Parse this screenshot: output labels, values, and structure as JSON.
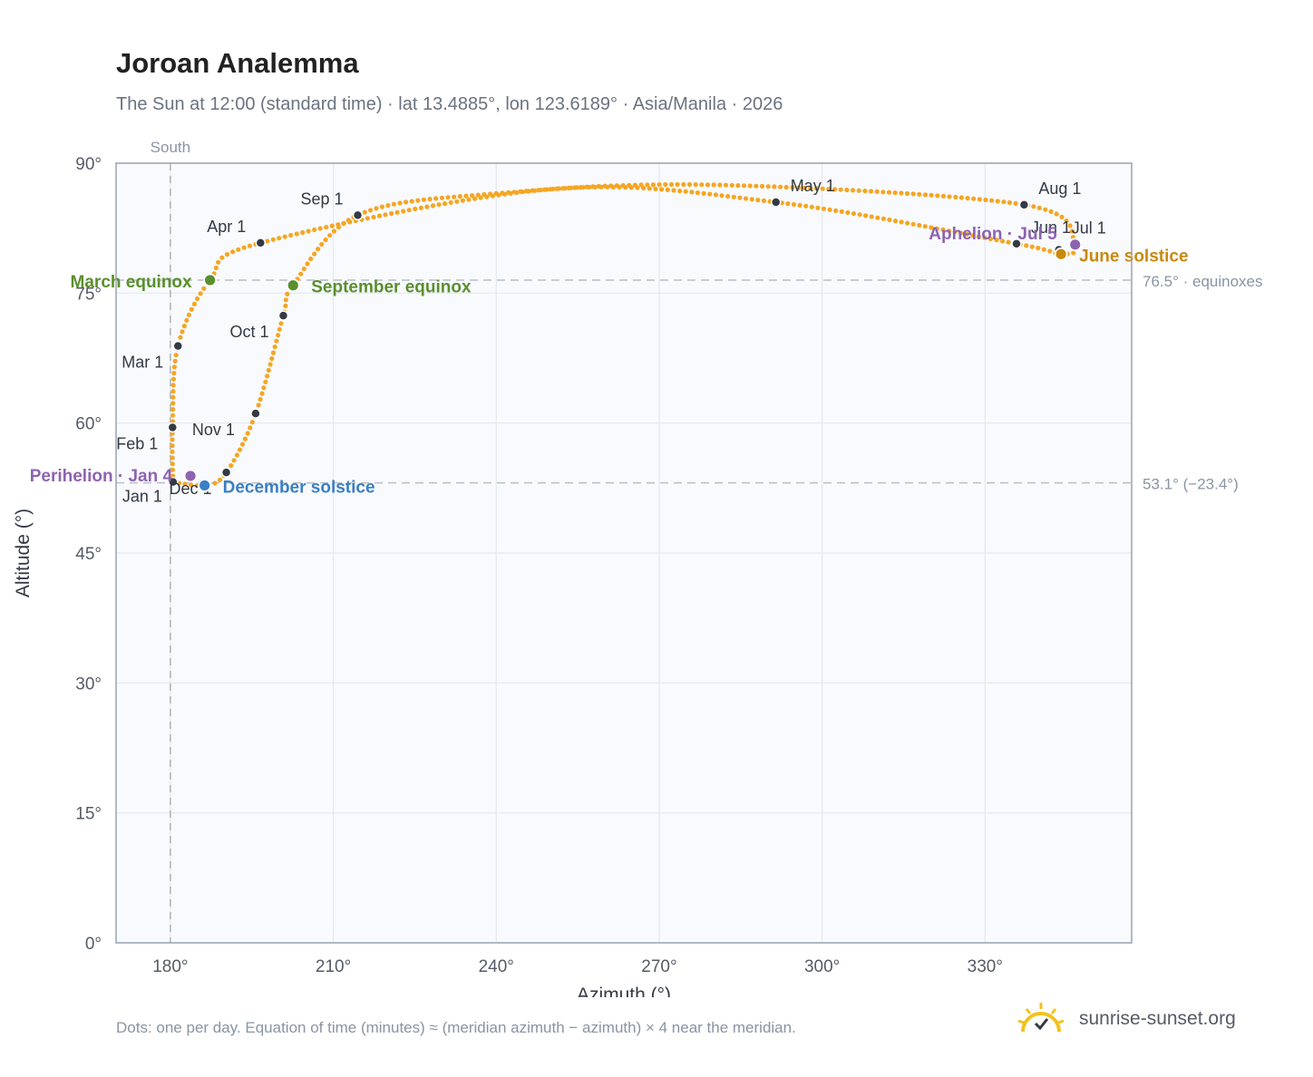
{
  "title": "Joroan Analemma",
  "subtitle": "The Sun at 12:00 (standard time) · lat 13.4885°, lon 123.6189° · Asia/Manila · 2026",
  "footnote": "Dots: one per day. Equation of time (minutes) ≈ (meridian azimuth − azimuth) × 4 near the meridian.",
  "brand": {
    "name": "sunrise-sunset.org",
    "icon": "sunrise-logo-icon"
  },
  "colors": {
    "curve": "#f5a623",
    "month_marker": "#333a44",
    "equinox": "#5a8f2e",
    "december_solstice": "#3b7fc4",
    "june_solstice": "#c9890e",
    "apsis": "#8e63b0",
    "plot_bg": "#f8fafd",
    "grid": "#e3e8ef",
    "axis": "#9aa4b2",
    "reference": "#b7bec8"
  },
  "chart_data": {
    "type": "scatter",
    "title": "Joroan Analemma",
    "xlabel": "Azimuth (°)",
    "ylabel": "Altitude (°)",
    "xlim": [
      170,
      357
    ],
    "ylim": [
      0,
      90
    ],
    "x_ticks": [
      {
        "value": 180,
        "label": "180°"
      },
      {
        "value": 210,
        "label": "210°"
      },
      {
        "value": 240,
        "label": "240°"
      },
      {
        "value": 270,
        "label": "270°"
      },
      {
        "value": 300,
        "label": "300°"
      },
      {
        "value": 330,
        "label": "330°"
      }
    ],
    "y_ticks": [
      {
        "value": 0,
        "label": "0°"
      },
      {
        "value": 15,
        "label": "15°"
      },
      {
        "value": 30,
        "label": "30°"
      },
      {
        "value": 45,
        "label": "45°"
      },
      {
        "value": 60,
        "label": "60°"
      },
      {
        "value": 75,
        "label": "75°"
      },
      {
        "value": 90,
        "label": "90°"
      }
    ],
    "grid": true,
    "meridian": {
      "azimuth": 180,
      "label": "South"
    },
    "reference_lines": [
      {
        "altitude": 76.5,
        "label": "76.5° · equinoxes"
      },
      {
        "altitude": 53.1,
        "label": "53.1° (−23.4°)"
      }
    ],
    "month_markers": [
      {
        "label": "Jan 1",
        "az": 180.5,
        "alt": 53.2
      },
      {
        "label": "Feb 1",
        "az": 180.4,
        "alt": 59.5
      },
      {
        "label": "Mar 1",
        "az": 181.4,
        "alt": 68.9
      },
      {
        "label": "Apr 1",
        "az": 196.6,
        "alt": 80.8
      },
      {
        "label": "May 1",
        "az": 291.5,
        "alt": 85.5
      },
      {
        "label": "Jun 1",
        "az": 335.8,
        "alt": 80.7
      },
      {
        "label": "Jul 1",
        "az": 343.6,
        "alt": 80.0
      },
      {
        "label": "Aug 1",
        "az": 337.2,
        "alt": 85.2
      },
      {
        "label": "Sep 1",
        "az": 214.5,
        "alt": 84.0
      },
      {
        "label": "Oct 1",
        "az": 200.8,
        "alt": 72.4
      },
      {
        "label": "Nov 1",
        "az": 195.7,
        "alt": 61.1
      },
      {
        "label": "Dec 1",
        "az": 190.3,
        "alt": 54.3
      }
    ],
    "events": [
      {
        "label": "March equinox",
        "az": 187.3,
        "alt": 76.5,
        "color": "#5a8f2e"
      },
      {
        "label": "September equinox",
        "az": 202.6,
        "alt": 75.9,
        "color": "#5a8f2e"
      },
      {
        "label": "December solstice",
        "az": 186.3,
        "alt": 52.8,
        "color": "#3b7fc4"
      },
      {
        "label": "June solstice",
        "az": 344.0,
        "alt": 79.5,
        "color": "#c9890e"
      },
      {
        "label": "Perihelion · Jan 4",
        "az": 183.7,
        "alt": 53.9,
        "color": "#8e63b0"
      },
      {
        "label": "Aphelion · Jul 5",
        "az": 346.6,
        "alt": 80.6,
        "color": "#8e63b0"
      }
    ],
    "daily_path": [
      [
        180.5,
        53.2
      ],
      [
        180.4,
        59.5
      ],
      [
        181.4,
        68.9
      ],
      [
        187.3,
        76.5
      ],
      [
        196.6,
        80.8
      ],
      [
        250.0,
        87.0
      ],
      [
        291.5,
        85.5
      ],
      [
        335.8,
        80.7
      ],
      [
        344.0,
        79.5
      ],
      [
        346.6,
        80.6
      ],
      [
        337.2,
        85.2
      ],
      [
        280.0,
        87.5
      ],
      [
        240.0,
        86.5
      ],
      [
        214.5,
        84.0
      ],
      [
        202.6,
        75.9
      ],
      [
        200.8,
        72.4
      ],
      [
        195.7,
        61.1
      ],
      [
        190.3,
        54.3
      ],
      [
        186.3,
        52.8
      ],
      [
        180.5,
        53.2
      ]
    ]
  }
}
